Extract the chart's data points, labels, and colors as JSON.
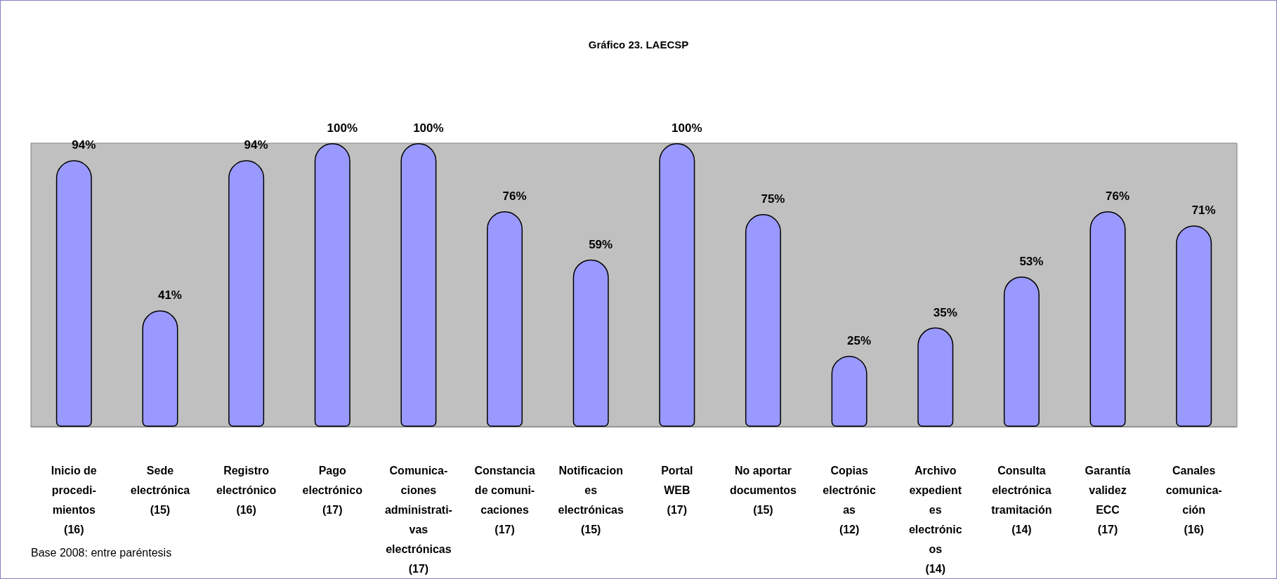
{
  "chart_data": {
    "type": "bar",
    "title": "Gráfico 23. LAECSP",
    "categories": [
      "Inicio de\nprocedi-\nmientos\n(16)",
      "Sede\nelectrónica\n(15)",
      "Registro\nelectrónico\n(16)",
      "Pago\nelectrónico\n(17)",
      "Comunica-\nciones\nadministrati-\nvas\nelectrónicas\n(17)",
      "Constancia\nde comuni-\ncaciones\n(17)",
      "Notificacion\nes\nelectrónicas\n(15)",
      "Portal\nWEB\n(17)",
      "No aportar\ndocumentos\n(15)",
      "Copias\nelectrónic\nas\n(12)",
      "Archivo\nexpedient\nes\nelectrónic\nos\n(14)",
      "Consulta\nelectrónica\ntramitación\n(14)",
      "Garantía\nvalidez\nECC\n(17)",
      "Canales\ncomunica-\nción\n(16)"
    ],
    "values": [
      94,
      41,
      94,
      100,
      100,
      76,
      59,
      100,
      75,
      25,
      35,
      53,
      76,
      71
    ],
    "value_labels": [
      "94%",
      "41%",
      "94%",
      "100%",
      "100%",
      "76%",
      "59%",
      "100%",
      "75%",
      "25%",
      "35%",
      "53%",
      "76%",
      "71%"
    ],
    "color": "#9999ff",
    "tick_labels": "x",
    "annotations": [
      "Base 2008: entre paréntesis"
    ]
  }
}
